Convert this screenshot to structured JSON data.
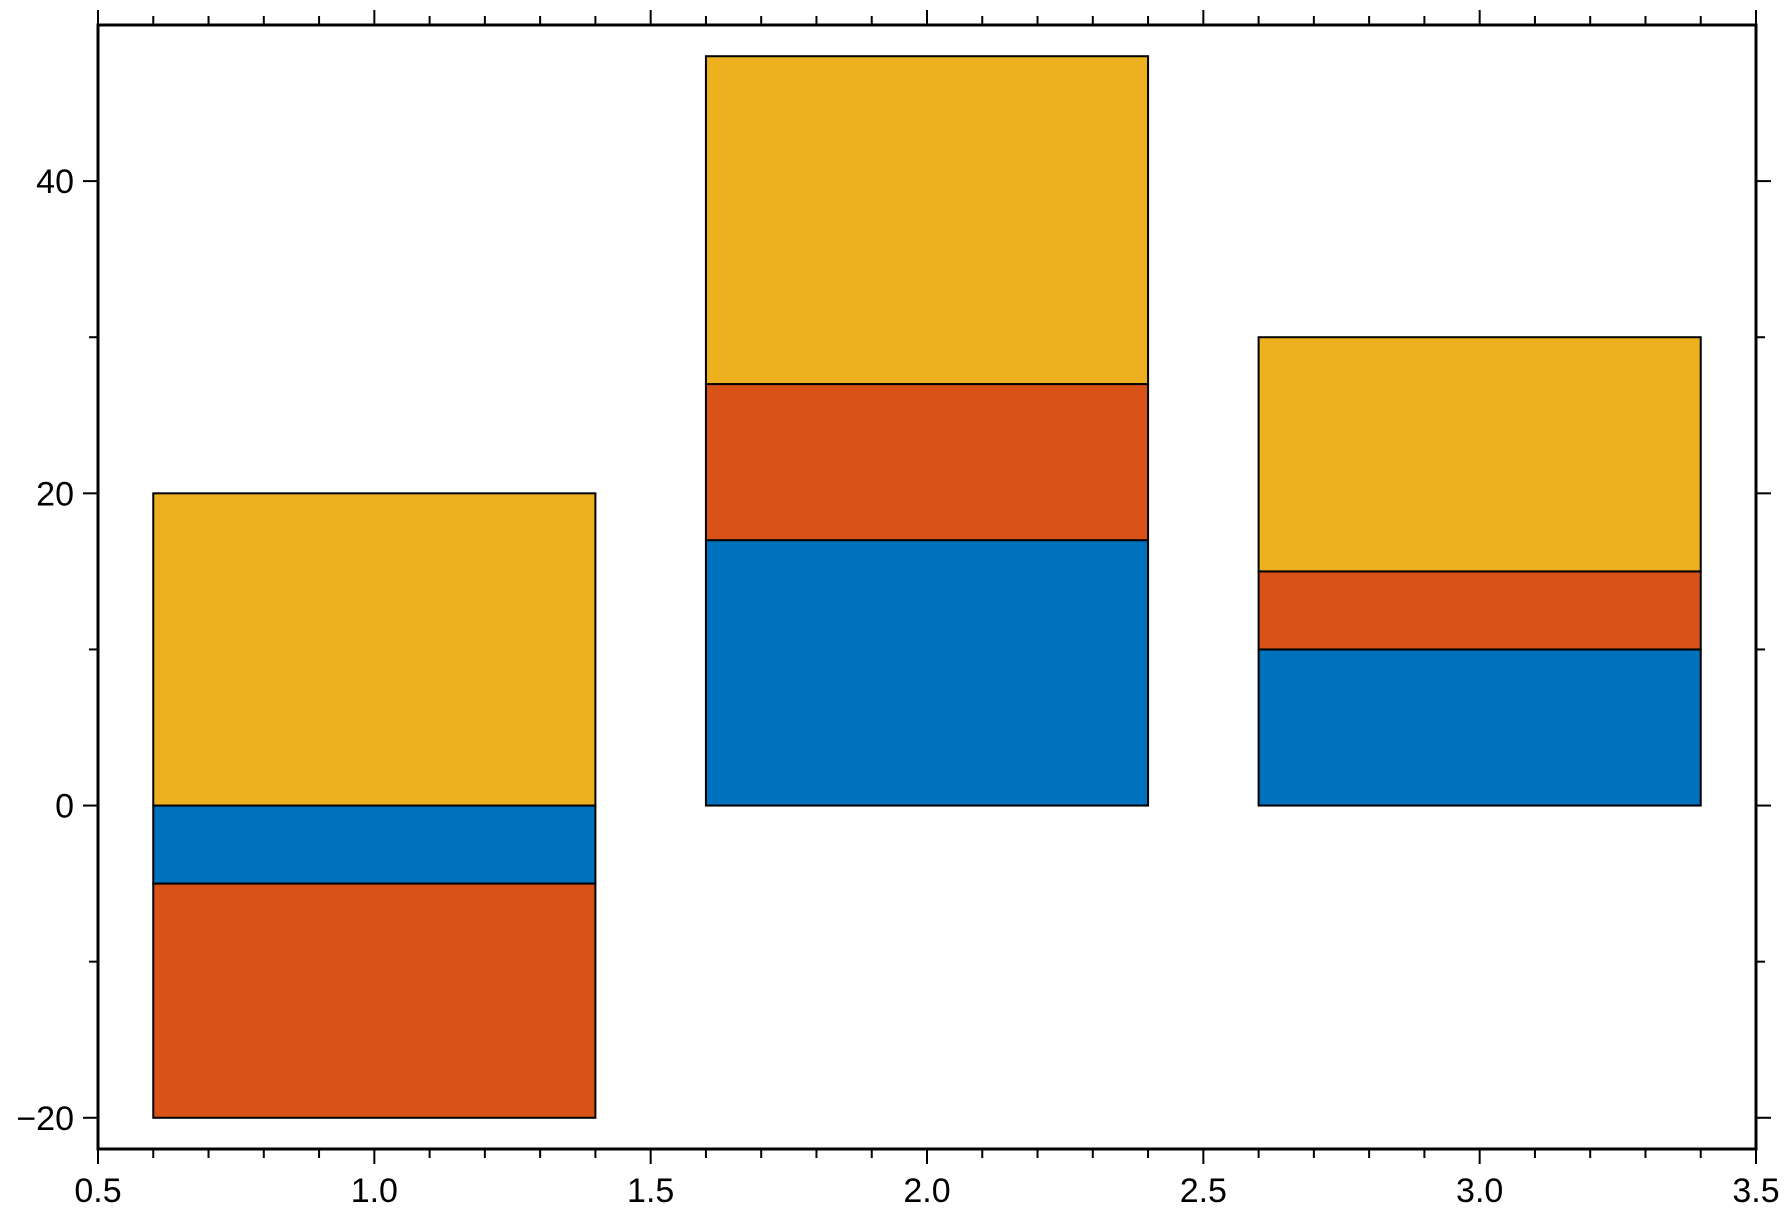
{
  "chart_data": {
    "type": "bar",
    "stacked": true,
    "x": [
      1.0,
      2.0,
      3.0
    ],
    "bar_width": 0.8,
    "series": [
      {
        "color": "#0072BD",
        "values": [
          -5,
          17,
          10
        ]
      },
      {
        "color": "#D95319",
        "values": [
          -15,
          10,
          5
        ]
      },
      {
        "color": "#EDB120",
        "values": [
          20,
          21,
          15
        ]
      }
    ],
    "segments": [
      {
        "x": 1.0,
        "y0": 0,
        "y1": -5,
        "series": 0
      },
      {
        "x": 1.0,
        "y0": -5,
        "y1": -20,
        "series": 1
      },
      {
        "x": 1.0,
        "y0": 0,
        "y1": 20,
        "series": 2
      },
      {
        "x": 2.0,
        "y0": 0,
        "y1": 17,
        "series": 0
      },
      {
        "x": 2.0,
        "y0": 17,
        "y1": 27,
        "series": 1
      },
      {
        "x": 2.0,
        "y0": 27,
        "y1": 48,
        "series": 2
      },
      {
        "x": 3.0,
        "y0": 0,
        "y1": 10,
        "series": 0
      },
      {
        "x": 3.0,
        "y0": 10,
        "y1": 15,
        "series": 1
      },
      {
        "x": 3.0,
        "y0": 15,
        "y1": 30,
        "series": 2
      }
    ],
    "xlim": [
      0.5,
      3.5
    ],
    "ylim": [
      -22,
      50
    ],
    "xticks": [
      "0.5",
      "1.0",
      "1.5",
      "2.0",
      "2.5",
      "3.0",
      "3.5"
    ],
    "yticks": [
      "−20",
      "0",
      "20",
      "40"
    ],
    "title": "",
    "xlabel": "",
    "ylabel": "",
    "grid": false
  }
}
